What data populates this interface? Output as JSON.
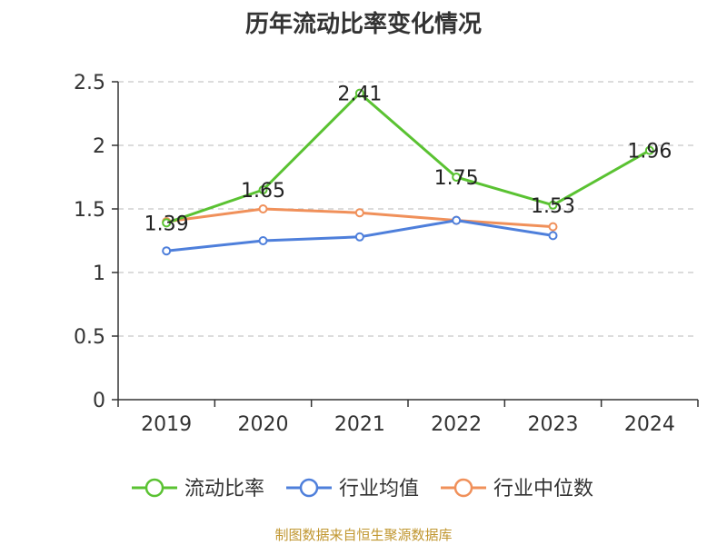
{
  "chart_data": {
    "type": "line",
    "title": "历年流动比率变化情况",
    "xlabel": "",
    "ylabel": "",
    "categories": [
      "2019",
      "2020",
      "2021",
      "2022",
      "2023",
      "2024"
    ],
    "ylim": [
      0,
      2.5
    ],
    "yticks": [
      "0",
      "0.5",
      "1",
      "1.5",
      "2",
      "2.5"
    ],
    "grid": true,
    "legend_position": "bottom",
    "series": [
      {
        "name": "流动比率",
        "color": "#5ac232",
        "values": [
          1.39,
          1.65,
          2.41,
          1.75,
          1.53,
          1.96
        ],
        "labels": [
          "1.39",
          "1.65",
          "2.41",
          "1.75",
          "1.53",
          "1.96"
        ]
      },
      {
        "name": "行业均值",
        "color": "#4e7fdb",
        "values": [
          1.17,
          1.25,
          1.28,
          1.41,
          1.29,
          null
        ]
      },
      {
        "name": "行业中位数",
        "color": "#f0905a",
        "values": [
          1.4,
          1.5,
          1.47,
          1.41,
          1.36,
          null
        ]
      }
    ]
  },
  "footer": {
    "source": "制图数据来自恒生聚源数据库"
  }
}
